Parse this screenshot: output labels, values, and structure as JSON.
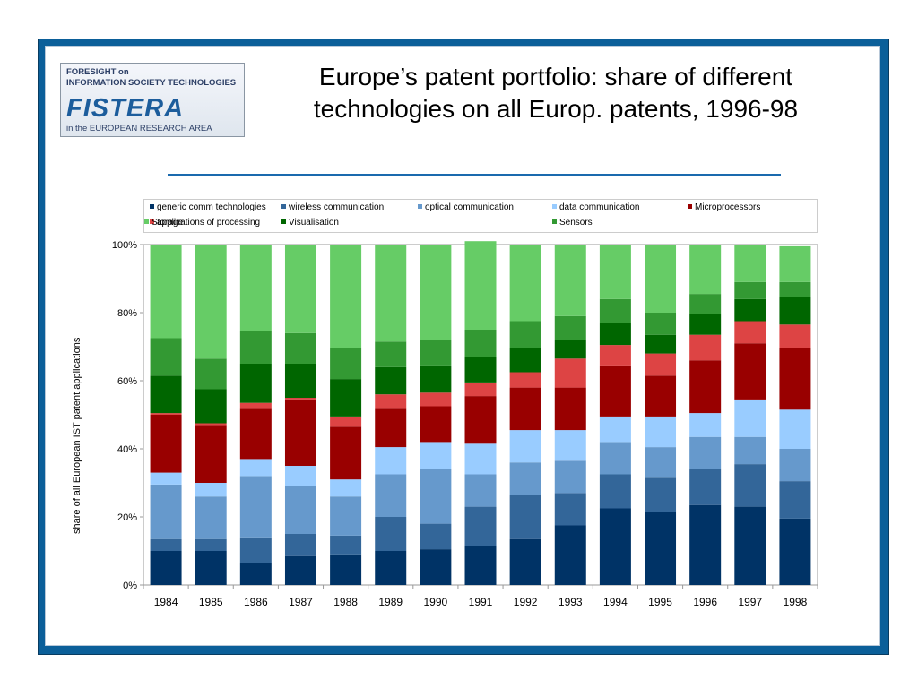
{
  "logo": {
    "line1": "FORESIGHT on",
    "line2": "INFORMATION SOCIETY TECHNOLOGIES",
    "brand": "FISTERA",
    "line3": "in the EUROPEAN RESEARCH AREA"
  },
  "title_lines": [
    "Europe’s patent portfolio: share of different",
    "technologies on all Europ. patents, 1996-98"
  ],
  "chart_data": {
    "type": "bar",
    "stacked": true,
    "title": "Europe’s patent portfolio: share of different technologies on all Europ. patents, 1996-98",
    "xlabel": "",
    "ylabel": "share of all European IST patent applications",
    "ylim": [
      0,
      100
    ],
    "yticks": [
      "0%",
      "20%",
      "40%",
      "60%",
      "80%",
      "100%"
    ],
    "grid": false,
    "legend_position": "top",
    "categories": [
      "1984",
      "1985",
      "1986",
      "1987",
      "1988",
      "1989",
      "1990",
      "1991",
      "1992",
      "1993",
      "1994",
      "1995",
      "1996",
      "1997",
      "1998"
    ],
    "series": [
      {
        "name": "generic comm technologies",
        "color": "#003366",
        "values": [
          10,
          10,
          6.5,
          8.5,
          9,
          10,
          10.5,
          11.5,
          13.5,
          17.5,
          22.5,
          21.5,
          23.5,
          23,
          19.5
        ]
      },
      {
        "name": "wireless communication",
        "color": "#336699",
        "values": [
          3.5,
          3.5,
          7.5,
          6.5,
          5.5,
          10,
          7.5,
          11.5,
          13,
          9.5,
          10,
          10,
          10.5,
          12.5,
          11
        ]
      },
      {
        "name": "optical communication",
        "color": "#6699cc",
        "values": [
          16,
          12.5,
          18,
          14,
          11.5,
          12.5,
          16,
          9.5,
          9.5,
          9.5,
          9.5,
          9,
          9.5,
          8,
          9.5
        ]
      },
      {
        "name": "data communication",
        "color": "#99ccff",
        "values": [
          3.5,
          4,
          5,
          6,
          5,
          8,
          8,
          9,
          9.5,
          9,
          7.5,
          9,
          7,
          11,
          11.5
        ]
      },
      {
        "name": "Microprocessors",
        "color": "#990000",
        "values": [
          17,
          17,
          15,
          19.5,
          15.5,
          11.5,
          10.5,
          14,
          12.5,
          12.5,
          15,
          12,
          15.5,
          16.5,
          18
        ]
      },
      {
        "name": "applications of processing",
        "color": "#dd4444",
        "values": [
          0.5,
          0.5,
          1.5,
          0.5,
          3,
          4,
          4,
          4,
          4.5,
          8.5,
          6,
          6.5,
          7.5,
          6.5,
          7
        ]
      },
      {
        "name": "Visualisation",
        "color": "#006600",
        "values": [
          11,
          10,
          11.5,
          10,
          11,
          8,
          8,
          7.5,
          7,
          5.5,
          6.5,
          5.5,
          6,
          6.5,
          8
        ]
      },
      {
        "name": "Sensors",
        "color": "#339933",
        "values": [
          11,
          9,
          9.5,
          9,
          9,
          7.5,
          7.5,
          8,
          8,
          7,
          7,
          6.5,
          6,
          5,
          4.5
        ]
      },
      {
        "name": "Storage",
        "color": "#66cc66",
        "values": [
          27.5,
          33.5,
          25.5,
          26,
          30.5,
          28.5,
          28,
          26,
          22.5,
          21,
          16,
          20,
          14.5,
          11,
          10.5
        ]
      }
    ]
  }
}
